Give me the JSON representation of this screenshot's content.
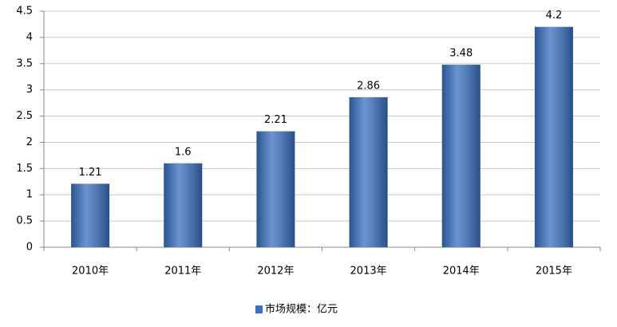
{
  "chart_data": {
    "type": "bar",
    "categories": [
      "2010年",
      "2011年",
      "2012年",
      "2013年",
      "2014年",
      "2015年"
    ],
    "series": [
      {
        "name": "市场规模：亿元",
        "color": "#3a70c0",
        "values": [
          1.21,
          1.6,
          2.21,
          2.86,
          3.48,
          4.2
        ]
      }
    ],
    "ylim": [
      0,
      4.5
    ],
    "yticks": [
      0,
      0.5,
      1,
      1.5,
      2,
      2.5,
      3,
      3.5,
      4,
      4.5
    ],
    "grid": true,
    "legend": "bottom"
  }
}
